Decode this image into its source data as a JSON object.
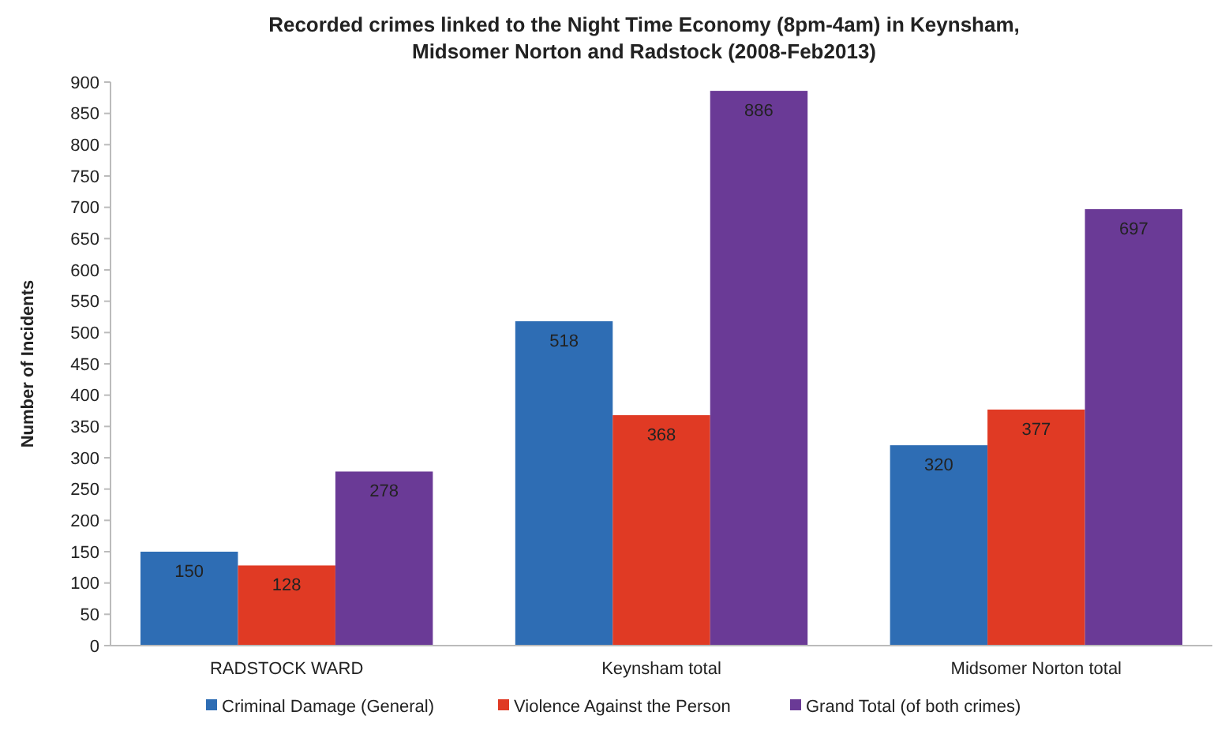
{
  "chart_data": {
    "type": "bar",
    "title": "Recorded crimes linked to the Night Time Economy (8pm-4am)  in Keynsham, Midsomer Norton and Radstock  (2008-Feb2013)",
    "ylabel": "Number of Incidents",
    "categories": [
      "RADSTOCK WARD",
      "Keynsham total",
      "Midsomer Norton total"
    ],
    "series": [
      {
        "name": "Criminal Damage (General)",
        "color": "#2e6db4",
        "values": [
          150,
          518,
          320
        ]
      },
      {
        "name": "Violence Against the Person",
        "color": "#e03a24",
        "values": [
          128,
          368,
          377
        ]
      },
      {
        "name": "Grand Total (of both crimes)",
        "color": "#6a3a96",
        "values": [
          278,
          886,
          697
        ]
      }
    ],
    "ylim": [
      0,
      900
    ],
    "yticks": [
      0,
      50,
      100,
      150,
      200,
      250,
      300,
      350,
      400,
      450,
      500,
      550,
      600,
      650,
      700,
      750,
      800,
      850,
      900
    ],
    "data_labels": true,
    "legend": "bottom",
    "grid": false
  }
}
